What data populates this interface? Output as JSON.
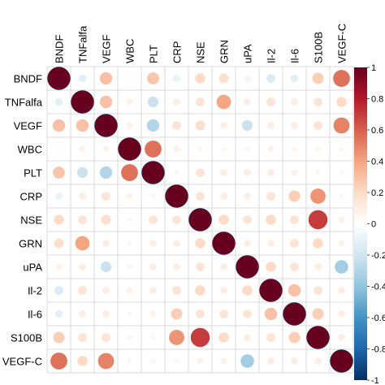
{
  "chart_data": {
    "type": "heatmap",
    "variables": [
      "BNDF",
      "TNFalfa",
      "VEGF",
      "WBC",
      "PLT",
      "CRP",
      "NSE",
      "GRN",
      "uPA",
      "Il-2",
      "Il-6",
      "S100B",
      "VEGF-C"
    ],
    "matrix": [
      [
        1.0,
        -0.12,
        0.3,
        0.03,
        0.28,
        -0.1,
        0.2,
        0.18,
        0.08,
        -0.15,
        -0.12,
        0.25,
        0.55
      ],
      [
        -0.12,
        1.0,
        0.3,
        0.08,
        -0.22,
        0.1,
        0.15,
        0.4,
        0.1,
        0.15,
        0.1,
        0.15,
        0.2
      ],
      [
        0.3,
        0.3,
        1.0,
        0.08,
        -0.3,
        0.15,
        0.18,
        0.1,
        -0.22,
        0.1,
        0.1,
        0.15,
        0.5
      ],
      [
        0.03,
        0.08,
        0.08,
        1.0,
        0.55,
        0.08,
        0.05,
        0.05,
        0.05,
        0.08,
        0.05,
        0.05,
        0.05
      ],
      [
        0.28,
        -0.22,
        -0.3,
        0.55,
        1.0,
        0.05,
        0.15,
        0.1,
        0.1,
        0.1,
        0.08,
        0.05,
        0.05
      ],
      [
        -0.1,
        0.1,
        0.15,
        0.08,
        0.05,
        1.0,
        0.15,
        0.1,
        0.1,
        0.15,
        0.25,
        0.45,
        0.05
      ],
      [
        0.2,
        0.15,
        0.18,
        0.05,
        0.15,
        0.15,
        1.0,
        0.2,
        0.15,
        0.2,
        0.15,
        0.7,
        0.08
      ],
      [
        0.18,
        0.4,
        0.1,
        0.05,
        0.1,
        0.1,
        0.2,
        1.0,
        0.1,
        0.1,
        0.15,
        0.2,
        0.08
      ],
      [
        0.08,
        0.1,
        -0.22,
        0.05,
        0.1,
        0.1,
        0.15,
        0.1,
        1.0,
        0.2,
        0.15,
        0.1,
        -0.35
      ],
      [
        -0.15,
        0.15,
        0.1,
        0.08,
        0.1,
        0.15,
        0.2,
        0.1,
        0.2,
        1.0,
        0.3,
        0.15,
        0.1
      ],
      [
        -0.12,
        0.1,
        0.1,
        0.05,
        0.08,
        0.25,
        0.15,
        0.15,
        0.15,
        0.3,
        1.0,
        0.25,
        0.1
      ],
      [
        0.25,
        0.15,
        0.15,
        0.05,
        0.05,
        0.45,
        0.7,
        0.2,
        0.1,
        0.15,
        0.25,
        1.0,
        0.1
      ],
      [
        0.55,
        0.2,
        0.5,
        0.05,
        0.05,
        0.05,
        0.08,
        0.08,
        -0.35,
        0.1,
        0.1,
        0.1,
        1.0
      ]
    ],
    "color_scale": {
      "min": -1,
      "max": 1,
      "ticks": [
        "1",
        "0.8",
        "0.6",
        "0.4",
        "0.2",
        "0",
        "-0.2",
        "-0.4",
        "-0.6",
        "-0.8",
        "-1"
      ],
      "colors": [
        "#67001F",
        "#B2182B",
        "#D6604D",
        "#F4A582",
        "#FDDBC7",
        "#FFFFFF",
        "#D1E5F0",
        "#92C5DE",
        "#4393C3",
        "#2166AC",
        "#053061"
      ]
    },
    "legend_position": "right",
    "grid": true
  }
}
